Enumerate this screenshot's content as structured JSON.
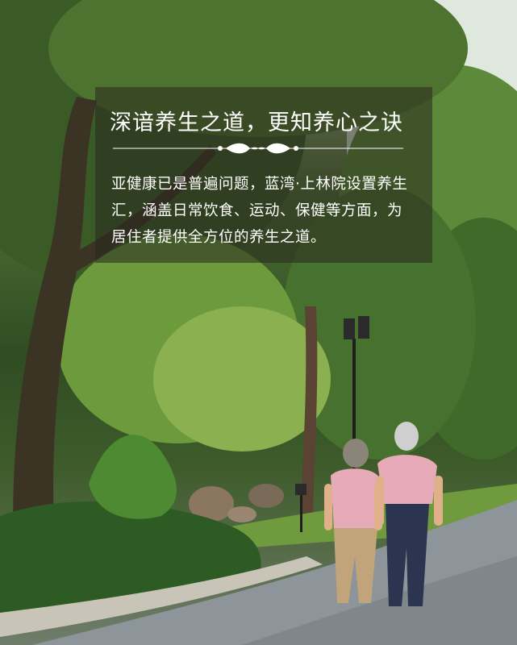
{
  "headline": "深谙养生之道，更知养心之诀",
  "body": "亚健康已是普遍问题，蓝湾·上林院设置养生汇，涵盖日常饮食、运动、保健等方面，为居住者提供全方位的养生之道。",
  "colors": {
    "text": "#ffffff",
    "overlay": "#28281e",
    "foliage_dark": "#2f4d22",
    "foliage_light": "#8fb55a",
    "road": "#8f969a",
    "shirt": "#e7aab8",
    "pants_woman": "#c2a47a",
    "pants_man": "#2b3550"
  }
}
